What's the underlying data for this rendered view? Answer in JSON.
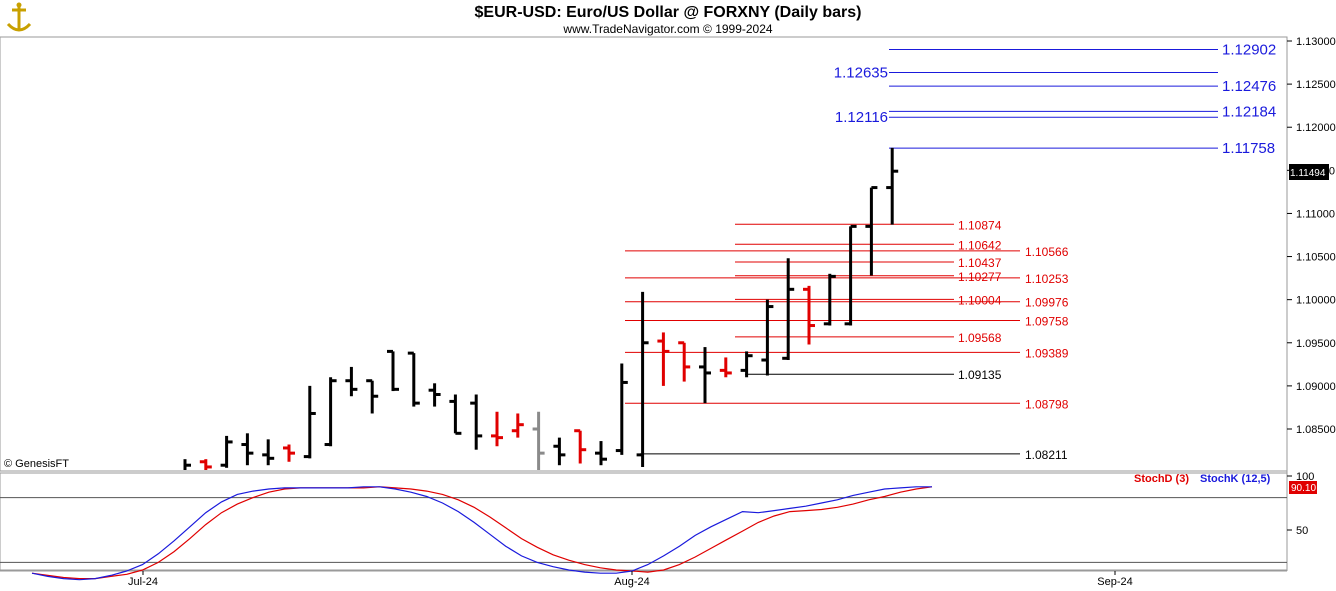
{
  "header": {
    "title": "$EUR-USD:  Euro/US Dollar @ FORXNY  (Daily bars)",
    "subtitle": "www.TradeNavigator.com © 1999-2024",
    "logo_icon": "anchor-cross-icon",
    "credit": "© GenesisFT"
  },
  "colors": {
    "up_bar": "#000000",
    "down_bar": "#e00000",
    "neutral_bar": "#8a8a8a",
    "blue_level": "#1a1adc",
    "red_level": "#e00000",
    "black_level": "#000000",
    "stoch_d": "#e00000",
    "stoch_k": "#1a1adc"
  },
  "chart_data": [
    {
      "type": "ohlc",
      "symbol": "$EUR-USD",
      "interval": "Daily bars",
      "y_axis": {
        "range": [
          1.0775,
          1.131
        ],
        "ticks": [
          "1.13000",
          "1.12500",
          "1.12000",
          "1.11500",
          "1.11000",
          "1.10500",
          "1.10000",
          "1.09500",
          "1.09000",
          "1.08500"
        ],
        "side": "right"
      },
      "x_axis": {
        "labels": [
          "Jul-24",
          "Aug-24",
          "Sep-24"
        ]
      },
      "last_price": "1.11494",
      "bars": [
        {
          "o": 1.08,
          "h": 1.0815,
          "l": 1.0795,
          "c": 1.0808,
          "color": "up"
        },
        {
          "o": 1.0812,
          "h": 1.0815,
          "l": 1.08,
          "c": 1.0806,
          "color": "down"
        },
        {
          "o": 1.0808,
          "h": 1.0842,
          "l": 1.0805,
          "c": 1.0835,
          "color": "up"
        },
        {
          "o": 1.0832,
          "h": 1.0845,
          "l": 1.0808,
          "c": 1.0822,
          "color": "up"
        },
        {
          "o": 1.082,
          "h": 1.0838,
          "l": 1.0808,
          "c": 1.0816,
          "color": "up"
        },
        {
          "o": 1.0828,
          "h": 1.0832,
          "l": 1.0812,
          "c": 1.0822,
          "color": "down"
        },
        {
          "o": 1.0818,
          "h": 1.09,
          "l": 1.0816,
          "c": 1.0868,
          "color": "up"
        },
        {
          "o": 1.0832,
          "h": 1.091,
          "l": 1.083,
          "c": 1.0906,
          "color": "up"
        },
        {
          "o": 1.0906,
          "h": 1.0922,
          "l": 1.0888,
          "c": 1.0896,
          "color": "up"
        },
        {
          "o": 1.0906,
          "h": 1.0906,
          "l": 1.0868,
          "c": 1.0888,
          "color": "up"
        },
        {
          "o": 1.094,
          "h": 1.094,
          "l": 1.0894,
          "c": 1.0896,
          "color": "up"
        },
        {
          "o": 1.0938,
          "h": 1.0938,
          "l": 1.0876,
          "c": 1.088,
          "color": "up"
        },
        {
          "o": 1.0895,
          "h": 1.0903,
          "l": 1.0876,
          "c": 1.089,
          "color": "up"
        },
        {
          "o": 1.0882,
          "h": 1.089,
          "l": 1.0845,
          "c": 1.0845,
          "color": "up"
        },
        {
          "o": 1.088,
          "h": 1.089,
          "l": 1.0826,
          "c": 1.0842,
          "color": "up"
        },
        {
          "o": 1.0842,
          "h": 1.087,
          "l": 1.083,
          "c": 1.084,
          "color": "down"
        },
        {
          "o": 1.0848,
          "h": 1.0868,
          "l": 1.084,
          "c": 1.0855,
          "color": "down"
        },
        {
          "o": 1.085,
          "h": 1.087,
          "l": 1.0795,
          "c": 1.0822,
          "color": "neutral"
        },
        {
          "o": 1.083,
          "h": 1.084,
          "l": 1.0808,
          "c": 1.082,
          "color": "up"
        },
        {
          "o": 1.0848,
          "h": 1.0848,
          "l": 1.081,
          "c": 1.0826,
          "color": "down"
        },
        {
          "o": 1.0822,
          "h": 1.0836,
          "l": 1.0808,
          "c": 1.0815,
          "color": "up"
        },
        {
          "o": 1.0825,
          "h": 1.0926,
          "l": 1.082,
          "c": 1.0904,
          "color": "up"
        },
        {
          "o": 1.082,
          "h": 1.1009,
          "l": 1.0806,
          "c": 1.095,
          "color": "up"
        },
        {
          "o": 1.0952,
          "h": 1.0962,
          "l": 1.09,
          "c": 1.094,
          "color": "down"
        },
        {
          "o": 1.095,
          "h": 1.095,
          "l": 1.0905,
          "c": 1.0922,
          "color": "down"
        },
        {
          "o": 1.0922,
          "h": 1.0945,
          "l": 1.088,
          "c": 1.0915,
          "color": "up"
        },
        {
          "o": 1.0918,
          "h": 1.0933,
          "l": 1.091,
          "c": 1.0915,
          "color": "down"
        },
        {
          "o": 1.0918,
          "h": 1.094,
          "l": 1.091,
          "c": 1.0935,
          "color": "up"
        },
        {
          "o": 1.093,
          "h": 1.1,
          "l": 1.0912,
          "c": 1.0992,
          "color": "up"
        },
        {
          "o": 1.0932,
          "h": 1.1048,
          "l": 1.093,
          "c": 1.1012,
          "color": "up"
        },
        {
          "o": 1.1012,
          "h": 1.1016,
          "l": 1.0948,
          "c": 1.097,
          "color": "down"
        },
        {
          "o": 1.0972,
          "h": 1.103,
          "l": 1.097,
          "c": 1.1027,
          "color": "up"
        },
        {
          "o": 1.0972,
          "h": 1.1085,
          "l": 1.097,
          "c": 1.1085,
          "color": "up"
        },
        {
          "o": 1.1085,
          "h": 1.113,
          "l": 1.1028,
          "c": 1.113,
          "color": "up"
        },
        {
          "o": 1.113,
          "h": 1.1176,
          "l": 1.1087,
          "c": 1.1149,
          "color": "up"
        }
      ],
      "levels": [
        {
          "value": 1.12902,
          "label": "1.12902",
          "color": "blue",
          "label_side": "right"
        },
        {
          "value": 1.12635,
          "label": "1.12635",
          "color": "blue",
          "label_side": "left"
        },
        {
          "value": 1.12476,
          "label": "1.12476",
          "color": "blue",
          "label_side": "right"
        },
        {
          "value": 1.12184,
          "label": "1.12184",
          "color": "blue",
          "label_side": "right"
        },
        {
          "value": 1.12116,
          "label": "1.12116",
          "color": "blue",
          "label_side": "left"
        },
        {
          "value": 1.11758,
          "label": "1.11758",
          "color": "blue",
          "label_side": "right"
        },
        {
          "value": 1.10874,
          "label": "1.10874",
          "color": "red",
          "label_side": "inner"
        },
        {
          "value": 1.10642,
          "label": "1.10642",
          "color": "red",
          "label_side": "inner"
        },
        {
          "value": 1.10566,
          "label": "1.10566",
          "color": "red",
          "label_side": "outer"
        },
        {
          "value": 1.10437,
          "label": "1.10437",
          "color": "red",
          "label_side": "inner"
        },
        {
          "value": 1.10277,
          "label": "1.10277",
          "color": "red",
          "label_side": "inner"
        },
        {
          "value": 1.10253,
          "label": "1.10253",
          "color": "red",
          "label_side": "outer"
        },
        {
          "value": 1.10004,
          "label": "1.10004",
          "color": "red",
          "label_side": "inner"
        },
        {
          "value": 1.09976,
          "label": "1.09976",
          "color": "red",
          "label_side": "outer"
        },
        {
          "value": 1.09758,
          "label": "1.09758",
          "color": "red",
          "label_side": "outer"
        },
        {
          "value": 1.09568,
          "label": "1.09568",
          "color": "red",
          "label_side": "inner"
        },
        {
          "value": 1.09389,
          "label": "1.09389",
          "color": "red",
          "label_side": "outer"
        },
        {
          "value": 1.09135,
          "label": "1.09135",
          "color": "black",
          "label_side": "inner"
        },
        {
          "value": 1.08798,
          "label": "1.08798",
          "color": "red",
          "label_side": "outer"
        },
        {
          "value": 1.08211,
          "label": "1.08211",
          "color": "black",
          "label_side": "outer"
        }
      ]
    },
    {
      "type": "line",
      "indicator": "Stochastic",
      "y_axis": {
        "range": [
          0,
          100
        ],
        "ticks": [
          "100",
          "50"
        ]
      },
      "reference_lines": [
        80,
        20
      ],
      "last_value": "90.10",
      "series": [
        {
          "name": "StochD (3)",
          "color": "red",
          "values": [
            10,
            8,
            6,
            5,
            5,
            7,
            9,
            13,
            20,
            30,
            42,
            55,
            66,
            74,
            80,
            85,
            88,
            89,
            89,
            89,
            89,
            89,
            90,
            89,
            88,
            86,
            83,
            78,
            71,
            62,
            52,
            42,
            34,
            27,
            22,
            18,
            15,
            13,
            12,
            11,
            13,
            18,
            25,
            33,
            41,
            49,
            57,
            63,
            67,
            68,
            69,
            71,
            74,
            78,
            81,
            85,
            88,
            90
          ]
        },
        {
          "name": "StochK (12,5)",
          "color": "blue",
          "values": [
            10,
            7,
            5,
            4,
            5,
            8,
            12,
            18,
            28,
            40,
            53,
            66,
            76,
            83,
            86,
            88,
            89,
            89,
            89,
            89,
            89,
            90,
            90,
            88,
            85,
            81,
            75,
            67,
            57,
            46,
            35,
            26,
            20,
            16,
            13,
            11,
            10,
            10,
            12,
            18,
            26,
            35,
            45,
            53,
            60,
            67,
            66,
            68,
            70,
            72,
            75,
            78,
            82,
            85,
            88,
            89,
            90,
            90
          ]
        }
      ]
    }
  ]
}
